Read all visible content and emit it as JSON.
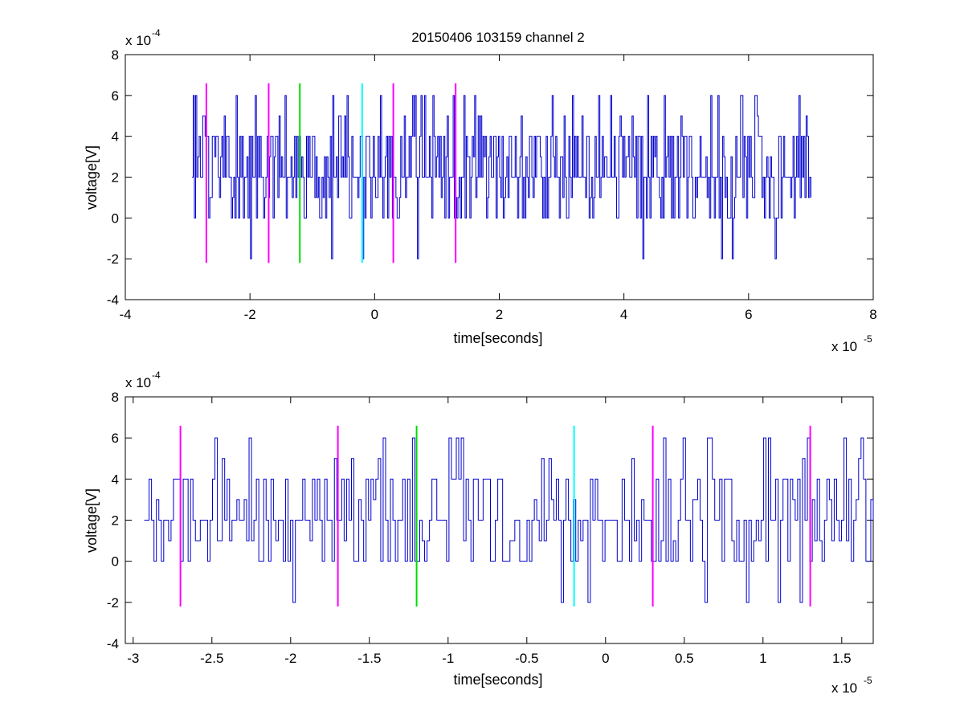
{
  "figure_title": "20150406 103159 channel 2",
  "chart_data": [
    {
      "type": "line",
      "title": "20150406 103159 channel 2",
      "xlabel": "time[seconds]",
      "ylabel": "voltage[V]",
      "x_scale_label": "x 10",
      "x_scale_exp": "-5",
      "y_scale_label": "x 10",
      "y_scale_exp": "-4",
      "xlim": [
        -4,
        8
      ],
      "ylim": [
        -4,
        8
      ],
      "xticks": [
        "-4",
        "-2",
        "0",
        "2",
        "4",
        "6",
        "8"
      ],
      "yticks": [
        "-4",
        "-2",
        "0",
        "2",
        "4",
        "6",
        "8"
      ],
      "grid": false,
      "series": [
        {
          "color": "#0000cc",
          "x_range": [
            -2.93,
            7.0
          ],
          "y_levels": [
            -2,
            0,
            1,
            2,
            3,
            4,
            5,
            6
          ],
          "baseline": 2
        }
      ],
      "markers": [
        {
          "x": -2.7,
          "color": "#ff00ff"
        },
        {
          "x": -1.7,
          "color": "#ff00ff"
        },
        {
          "x": -1.2,
          "color": "#00dd00"
        },
        {
          "x": -0.2,
          "color": "#00ffff"
        },
        {
          "x": 0.3,
          "color": "#ff00ff"
        },
        {
          "x": 1.3,
          "color": "#ff00ff"
        }
      ],
      "marker_y_range": [
        -2.2,
        6.6
      ]
    },
    {
      "type": "line",
      "title": "",
      "xlabel": "time[seconds]",
      "ylabel": "voltage[V]",
      "x_scale_label": "x 10",
      "x_scale_exp": "-5",
      "y_scale_label": "x 10",
      "y_scale_exp": "-4",
      "xlim": [
        -3.05,
        1.7
      ],
      "ylim": [
        -4,
        8
      ],
      "xticks": [
        "-3",
        "-2.5",
        "-2",
        "-1.5",
        "-1",
        "-0.5",
        "0",
        "0.5",
        "1",
        "1.5"
      ],
      "yticks": [
        "-4",
        "-2",
        "0",
        "2",
        "4",
        "6",
        "8"
      ],
      "grid": false,
      "series": [
        {
          "color": "#0000cc",
          "x_range": [
            -2.93,
            1.7
          ],
          "y_levels": [
            -2,
            0,
            1,
            2,
            3,
            4,
            5,
            6
          ],
          "baseline": 2
        }
      ],
      "markers": [
        {
          "x": -2.7,
          "color": "#ff00ff"
        },
        {
          "x": -1.7,
          "color": "#ff00ff"
        },
        {
          "x": -1.2,
          "color": "#00dd00"
        },
        {
          "x": -0.2,
          "color": "#00ffff"
        },
        {
          "x": 0.3,
          "color": "#ff00ff"
        },
        {
          "x": 1.3,
          "color": "#ff00ff"
        }
      ],
      "marker_y_range": [
        -2.2,
        6.6
      ]
    }
  ]
}
